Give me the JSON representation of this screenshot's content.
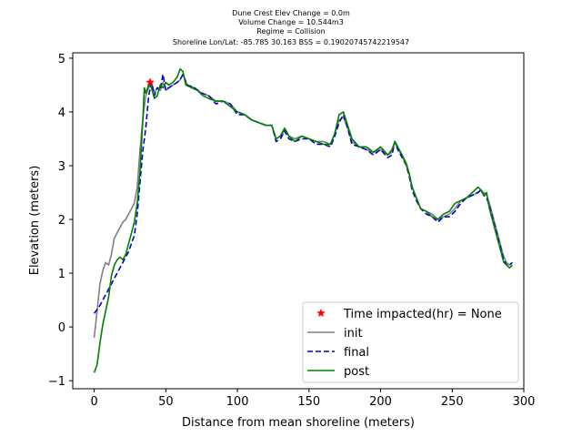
{
  "chart_data": {
    "type": "line",
    "title_lines": [
      "Dune Crest Elev Change = 0.0m",
      "Volume Change = 10.544m3",
      "Regime = Collision",
      "Shoreline Lon/Lat: -85.785 30.163   BSS = 0.19020745742219547"
    ],
    "xlabel": "Distance from mean shoreline (meters)",
    "ylabel": "Elevation (meters)",
    "xlim": [
      -15,
      300
    ],
    "ylim": [
      -1.15,
      5.1
    ],
    "xticks": [
      0,
      50,
      100,
      150,
      200,
      250,
      300
    ],
    "yticks": [
      -1,
      0,
      1,
      2,
      3,
      4,
      5
    ],
    "legend_position": "lower right",
    "grid": false,
    "marker": {
      "name": "Time impacted(hr) = None",
      "x": 39,
      "y": 4.55,
      "color": "#ff0000",
      "symbol": "star"
    },
    "series": [
      {
        "name": "init",
        "color": "#808080",
        "style": "solid",
        "points": [
          [
            0,
            -0.2
          ],
          [
            2,
            0.3
          ],
          [
            4,
            0.8
          ],
          [
            6,
            1.05
          ],
          [
            8,
            1.2
          ],
          [
            10,
            1.15
          ],
          [
            12,
            1.35
          ],
          [
            14,
            1.65
          ],
          [
            16,
            1.75
          ],
          [
            18,
            1.85
          ],
          [
            20,
            1.95
          ],
          [
            22,
            2.0
          ],
          [
            24,
            2.1
          ],
          [
            26,
            2.2
          ],
          [
            28,
            2.3
          ],
          [
            30,
            2.6
          ],
          [
            32,
            3.3
          ],
          [
            34,
            3.9
          ],
          [
            36,
            4.3
          ],
          [
            38,
            4.45
          ],
          [
            40,
            4.55
          ],
          [
            42,
            4.35
          ],
          [
            44,
            4.45
          ],
          [
            46,
            4.4
          ],
          [
            48,
            4.55
          ],
          [
            50,
            4.4
          ],
          [
            52,
            4.45
          ],
          [
            55,
            4.5
          ],
          [
            58,
            4.55
          ],
          [
            60,
            4.6
          ],
          [
            62,
            4.7
          ],
          [
            65,
            4.5
          ],
          [
            70,
            4.45
          ],
          [
            75,
            4.35
          ],
          [
            80,
            4.3
          ],
          [
            85,
            4.2
          ],
          [
            90,
            4.2
          ],
          [
            95,
            4.15
          ],
          [
            100,
            4.0
          ],
          [
            105,
            3.95
          ],
          [
            110,
            3.85
          ],
          [
            115,
            3.8
          ],
          [
            120,
            3.75
          ],
          [
            124,
            3.75
          ],
          [
            127,
            3.5
          ],
          [
            130,
            3.55
          ],
          [
            133,
            3.65
          ],
          [
            136,
            3.55
          ],
          [
            140,
            3.5
          ],
          [
            145,
            3.55
          ],
          [
            150,
            3.5
          ],
          [
            155,
            3.45
          ],
          [
            160,
            3.45
          ],
          [
            165,
            3.4
          ],
          [
            168,
            3.6
          ],
          [
            171,
            3.85
          ],
          [
            174,
            3.9
          ],
          [
            177,
            3.7
          ],
          [
            180,
            3.45
          ],
          [
            185,
            3.35
          ],
          [
            190,
            3.3
          ],
          [
            195,
            3.25
          ],
          [
            200,
            3.3
          ],
          [
            205,
            3.2
          ],
          [
            208,
            3.25
          ],
          [
            210,
            3.45
          ],
          [
            212,
            3.3
          ],
          [
            215,
            3.2
          ],
          [
            218,
            3.05
          ],
          [
            220,
            2.85
          ],
          [
            222,
            2.6
          ],
          [
            225,
            2.4
          ],
          [
            228,
            2.2
          ],
          [
            232,
            2.15
          ],
          [
            236,
            2.1
          ],
          [
            240,
            2.0
          ],
          [
            244,
            2.05
          ],
          [
            248,
            2.1
          ],
          [
            252,
            2.2
          ],
          [
            256,
            2.35
          ],
          [
            260,
            2.4
          ],
          [
            264,
            2.45
          ],
          [
            268,
            2.5
          ],
          [
            270,
            2.55
          ],
          [
            272,
            2.5
          ],
          [
            274,
            2.45
          ],
          [
            276,
            2.3
          ],
          [
            278,
            2.1
          ],
          [
            280,
            1.9
          ],
          [
            282,
            1.7
          ],
          [
            284,
            1.5
          ],
          [
            286,
            1.3
          ],
          [
            288,
            1.2
          ],
          [
            290,
            1.15
          ],
          [
            292,
            1.2
          ]
        ]
      },
      {
        "name": "final",
        "color": "#0000cc",
        "style": "dashed",
        "points": [
          [
            0,
            0.25
          ],
          [
            4,
            0.4
          ],
          [
            8,
            0.6
          ],
          [
            12,
            0.8
          ],
          [
            16,
            1.0
          ],
          [
            20,
            1.2
          ],
          [
            24,
            1.4
          ],
          [
            28,
            1.7
          ],
          [
            30,
            2.1
          ],
          [
            32,
            2.7
          ],
          [
            34,
            3.3
          ],
          [
            36,
            3.7
          ],
          [
            38,
            4.3
          ],
          [
            40,
            4.55
          ],
          [
            42,
            4.3
          ],
          [
            44,
            4.45
          ],
          [
            46,
            4.4
          ],
          [
            48,
            4.7
          ],
          [
            50,
            4.4
          ],
          [
            52,
            4.45
          ],
          [
            55,
            4.5
          ],
          [
            58,
            4.55
          ],
          [
            60,
            4.6
          ],
          [
            62,
            4.7
          ],
          [
            65,
            4.5
          ],
          [
            70,
            4.45
          ],
          [
            75,
            4.35
          ],
          [
            80,
            4.3
          ],
          [
            85,
            4.15
          ],
          [
            90,
            4.2
          ],
          [
            95,
            4.15
          ],
          [
            100,
            3.95
          ],
          [
            105,
            3.95
          ],
          [
            110,
            3.85
          ],
          [
            115,
            3.8
          ],
          [
            120,
            3.75
          ],
          [
            124,
            3.75
          ],
          [
            127,
            3.45
          ],
          [
            130,
            3.5
          ],
          [
            133,
            3.65
          ],
          [
            136,
            3.5
          ],
          [
            140,
            3.45
          ],
          [
            145,
            3.5
          ],
          [
            150,
            3.5
          ],
          [
            155,
            3.4
          ],
          [
            160,
            3.4
          ],
          [
            165,
            3.35
          ],
          [
            168,
            3.55
          ],
          [
            171,
            3.8
          ],
          [
            174,
            3.95
          ],
          [
            177,
            3.7
          ],
          [
            180,
            3.4
          ],
          [
            185,
            3.35
          ],
          [
            190,
            3.3
          ],
          [
            195,
            3.2
          ],
          [
            200,
            3.3
          ],
          [
            205,
            3.15
          ],
          [
            208,
            3.2
          ],
          [
            210,
            3.45
          ],
          [
            212,
            3.3
          ],
          [
            215,
            3.15
          ],
          [
            218,
            3.0
          ],
          [
            220,
            2.8
          ],
          [
            222,
            2.55
          ],
          [
            225,
            2.35
          ],
          [
            228,
            2.2
          ],
          [
            232,
            2.1
          ],
          [
            236,
            2.05
          ],
          [
            240,
            1.95
          ],
          [
            244,
            2.05
          ],
          [
            248,
            2.05
          ],
          [
            252,
            2.15
          ],
          [
            256,
            2.3
          ],
          [
            260,
            2.4
          ],
          [
            264,
            2.45
          ],
          [
            268,
            2.5
          ],
          [
            270,
            2.55
          ],
          [
            272,
            2.45
          ],
          [
            274,
            2.4
          ],
          [
            276,
            2.25
          ],
          [
            278,
            2.05
          ],
          [
            280,
            1.85
          ],
          [
            282,
            1.65
          ],
          [
            284,
            1.45
          ],
          [
            286,
            1.25
          ],
          [
            288,
            1.15
          ],
          [
            290,
            1.15
          ],
          [
            292,
            1.2
          ]
        ]
      },
      {
        "name": "post",
        "color": "#008000",
        "style": "solid",
        "points": [
          [
            0,
            -0.85
          ],
          [
            2,
            -0.7
          ],
          [
            4,
            -0.3
          ],
          [
            6,
            0.05
          ],
          [
            8,
            0.3
          ],
          [
            10,
            0.55
          ],
          [
            12,
            0.95
          ],
          [
            14,
            1.15
          ],
          [
            16,
            1.25
          ],
          [
            18,
            1.3
          ],
          [
            20,
            1.25
          ],
          [
            22,
            1.35
          ],
          [
            24,
            1.55
          ],
          [
            26,
            1.75
          ],
          [
            28,
            1.95
          ],
          [
            30,
            2.3
          ],
          [
            32,
            2.9
          ],
          [
            34,
            3.9
          ],
          [
            35,
            4.45
          ],
          [
            36,
            4.35
          ],
          [
            38,
            4.5
          ],
          [
            40,
            4.45
          ],
          [
            42,
            4.25
          ],
          [
            44,
            4.3
          ],
          [
            46,
            4.5
          ],
          [
            48,
            4.45
          ],
          [
            50,
            4.55
          ],
          [
            52,
            4.5
          ],
          [
            55,
            4.55
          ],
          [
            58,
            4.65
          ],
          [
            60,
            4.8
          ],
          [
            62,
            4.75
          ],
          [
            64,
            4.5
          ],
          [
            68,
            4.45
          ],
          [
            72,
            4.4
          ],
          [
            76,
            4.3
          ],
          [
            80,
            4.25
          ],
          [
            85,
            4.2
          ],
          [
            90,
            4.2
          ],
          [
            95,
            4.1
          ],
          [
            100,
            4.0
          ],
          [
            105,
            3.95
          ],
          [
            110,
            3.85
          ],
          [
            115,
            3.8
          ],
          [
            120,
            3.75
          ],
          [
            124,
            3.75
          ],
          [
            127,
            3.5
          ],
          [
            130,
            3.55
          ],
          [
            133,
            3.7
          ],
          [
            136,
            3.55
          ],
          [
            140,
            3.45
          ],
          [
            145,
            3.55
          ],
          [
            150,
            3.5
          ],
          [
            155,
            3.45
          ],
          [
            160,
            3.4
          ],
          [
            165,
            3.4
          ],
          [
            168,
            3.6
          ],
          [
            171,
            3.95
          ],
          [
            174,
            4.0
          ],
          [
            177,
            3.75
          ],
          [
            180,
            3.5
          ],
          [
            185,
            3.35
          ],
          [
            190,
            3.35
          ],
          [
            195,
            3.25
          ],
          [
            200,
            3.35
          ],
          [
            205,
            3.2
          ],
          [
            208,
            3.3
          ],
          [
            210,
            3.45
          ],
          [
            212,
            3.35
          ],
          [
            215,
            3.2
          ],
          [
            218,
            3.0
          ],
          [
            220,
            2.85
          ],
          [
            222,
            2.6
          ],
          [
            225,
            2.4
          ],
          [
            228,
            2.2
          ],
          [
            232,
            2.15
          ],
          [
            236,
            2.05
          ],
          [
            240,
            2.0
          ],
          [
            244,
            2.1
          ],
          [
            248,
            2.15
          ],
          [
            252,
            2.3
          ],
          [
            256,
            2.35
          ],
          [
            260,
            2.4
          ],
          [
            264,
            2.5
          ],
          [
            268,
            2.6
          ],
          [
            270,
            2.55
          ],
          [
            272,
            2.45
          ],
          [
            274,
            2.5
          ],
          [
            276,
            2.2
          ],
          [
            278,
            2.0
          ],
          [
            280,
            1.8
          ],
          [
            282,
            1.6
          ],
          [
            284,
            1.4
          ],
          [
            286,
            1.2
          ],
          [
            288,
            1.15
          ],
          [
            290,
            1.1
          ],
          [
            292,
            1.15
          ]
        ]
      }
    ]
  }
}
